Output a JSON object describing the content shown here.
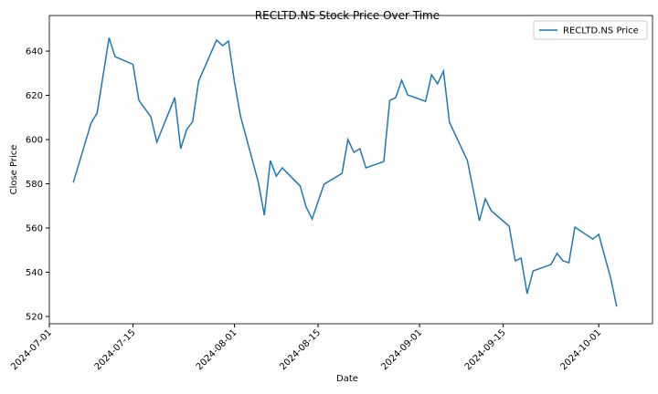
{
  "chart_data": {
    "type": "line",
    "title": "RECLTD.NS Stock Price Over Time",
    "x_label": "Date",
    "y_label": "Close Price",
    "x": [
      "2024-07-05",
      "2024-07-08",
      "2024-07-09",
      "2024-07-10",
      "2024-07-11",
      "2024-07-12",
      "2024-07-15",
      "2024-07-16",
      "2024-07-18",
      "2024-07-19",
      "2024-07-22",
      "2024-07-23",
      "2024-07-24",
      "2024-07-25",
      "2024-07-26",
      "2024-07-29",
      "2024-07-30",
      "2024-07-31",
      "2024-08-01",
      "2024-08-02",
      "2024-08-05",
      "2024-08-06",
      "2024-08-07",
      "2024-08-08",
      "2024-08-09",
      "2024-08-12",
      "2024-08-13",
      "2024-08-14",
      "2024-08-16",
      "2024-08-19",
      "2024-08-20",
      "2024-08-21",
      "2024-08-22",
      "2024-08-23",
      "2024-08-26",
      "2024-08-27",
      "2024-08-28",
      "2024-08-29",
      "2024-08-30",
      "2024-09-02",
      "2024-09-03",
      "2024-09-04",
      "2024-09-05",
      "2024-09-06",
      "2024-09-09",
      "2024-09-10",
      "2024-09-11",
      "2024-09-12",
      "2024-09-13",
      "2024-09-16",
      "2024-09-17",
      "2024-09-18",
      "2024-09-19",
      "2024-09-20",
      "2024-09-23",
      "2024-09-24",
      "2024-09-25",
      "2024-09-26",
      "2024-09-27",
      "2024-09-30",
      "2024-10-01",
      "2024-10-03",
      "2024-10-04"
    ],
    "series": [
      {
        "name": "RECLTD.NS Price",
        "color": "#1f77b4",
        "values": [
          580.5,
          607.5,
          612,
          629,
          646,
          637.5,
          634,
          617.7,
          610.3,
          598.8,
          619,
          595.9,
          604.5,
          608.2,
          626.4,
          645,
          642.5,
          644.5,
          626,
          610.7,
          580.6,
          565.8,
          590.5,
          583.5,
          587.2,
          579,
          569.5,
          564.1,
          579.8,
          584.7,
          600,
          594.2,
          595.9,
          587.2,
          590.1,
          617.7,
          619,
          626.8,
          620.2,
          617.3,
          629.3,
          625.2,
          631,
          607.8,
          590.5,
          577,
          563.3,
          573.2,
          567.8,
          560.8,
          545.2,
          546.4,
          530.3,
          540.6,
          543.5,
          548.5,
          545.2,
          544.3,
          560.4,
          555,
          557.1,
          537.3,
          524.5
        ]
      }
    ],
    "xlim": [
      "2024-07-01",
      "2024-10-10"
    ],
    "xticks": [
      "2024-07-01",
      "2024-07-15",
      "2024-08-01",
      "2024-08-15",
      "2024-09-01",
      "2024-09-15",
      "2024-10-01"
    ],
    "ylim": [
      516.7,
      656.1
    ],
    "yticks": [
      520,
      540,
      560,
      580,
      600,
      620,
      640
    ],
    "legend": "upper right"
  }
}
